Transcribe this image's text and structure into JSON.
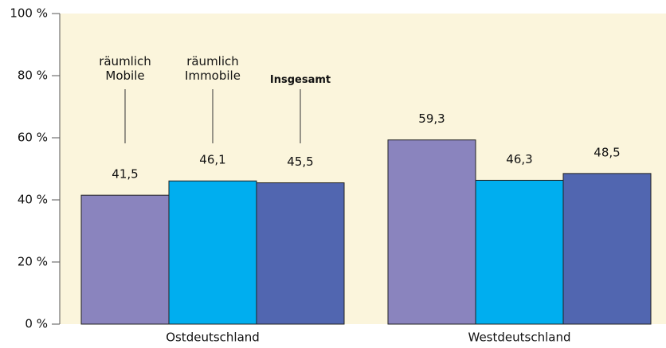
{
  "chart_data": {
    "type": "bar",
    "categories": [
      "Ostdeutschland",
      "Westdeutschland"
    ],
    "series": [
      {
        "name": "räumlich Mobile",
        "color": "#8a84be",
        "values": [
          41.5,
          59.3
        ],
        "value_labels": [
          "41,5",
          "59,3"
        ]
      },
      {
        "name": "räumlich Immobile",
        "color": "#00aeef",
        "values": [
          46.1,
          46.3
        ],
        "value_labels": [
          "46,1",
          "46,3"
        ]
      },
      {
        "name": "Insgesamt",
        "color": "#5166b0",
        "values": [
          45.5,
          48.5
        ],
        "value_labels": [
          "45,5",
          "48,5"
        ]
      }
    ],
    "ylim": [
      0,
      100
    ],
    "yticks": [
      {
        "value": 0,
        "label": "0 %"
      },
      {
        "value": 20,
        "label": "20 %"
      },
      {
        "value": 40,
        "label": "40 %"
      },
      {
        "value": 60,
        "label": "60 %"
      },
      {
        "value": 80,
        "label": "80 %"
      },
      {
        "value": 100,
        "label": "100 %"
      }
    ],
    "legend": "inline"
  }
}
